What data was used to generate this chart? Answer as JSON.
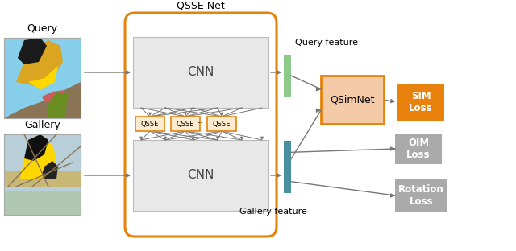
{
  "bg_color": "#ffffff",
  "fig_width": 6.4,
  "fig_height": 3.12,
  "query_label": "Query",
  "gallery_label": "Gallery",
  "qsse_net_label": "QSSE Net",
  "query_feature_label": "Query feature",
  "gallery_feature_label": "Gallery feature",
  "cnn_top_label": "CNN",
  "cnn_bottom_label": "CNN",
  "qsse_labels": [
    "QSSE",
    "QSSE",
    "QSSE"
  ],
  "dots": "··",
  "qsimnet_label": "QSimNet",
  "sim_loss_label": "SIM\nLoss",
  "oim_loss_label": "OIM\nLoss",
  "rotation_loss_label": "Rotation\nLoss",
  "orange_border": "#E8820C",
  "gray_bg": "#E8E8E8",
  "green_bar": "#8DC98A",
  "teal_bar": "#4A8FA0",
  "qsse_box_fill": "#FDEBD0",
  "qsse_box_border": "#E8820C",
  "qsimnet_fill": "#F5CBA7",
  "qsimnet_border": "#E8820C",
  "sim_loss_fill": "#E8820C",
  "oim_rot_fill": "#AAAAAA",
  "arrow_color": "#777777",
  "img_border": "#AAAAAA",
  "query_img_bg": "#87CEEB",
  "gallery_img_bg": "#B8D4C8"
}
